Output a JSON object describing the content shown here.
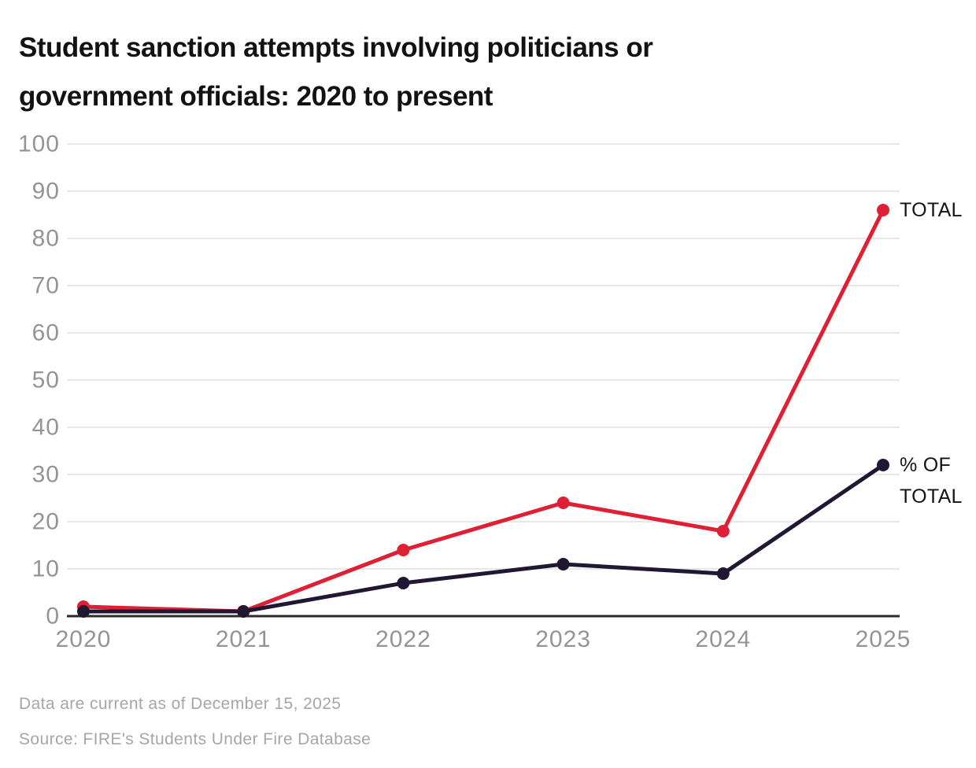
{
  "title": "Student sanction attempts involving politicians or government officials: 2020 to present",
  "chart_data": {
    "type": "line",
    "categories": [
      "2020",
      "2021",
      "2022",
      "2023",
      "2024",
      "2025"
    ],
    "series": [
      {
        "name": "TOTAL",
        "color": "#df1f33",
        "values": [
          2,
          1,
          14,
          24,
          18,
          86
        ]
      },
      {
        "name": "% OF TOTAL",
        "color": "#211733",
        "values": [
          1,
          1,
          7,
          11,
          9,
          32
        ]
      }
    ],
    "title": "Student sanction attempts involving politicians or government officials: 2020 to present",
    "xlabel": "",
    "ylabel": "",
    "ylim": [
      0,
      100
    ],
    "ytick_step": 10,
    "yticks": [
      0,
      10,
      20,
      30,
      40,
      50,
      60,
      70,
      80,
      90,
      100
    ],
    "grid": true,
    "legend_position": "right-of-last-point",
    "colors": {
      "gridline": "#e8e8e8",
      "axis_line": "#2b2b2b",
      "tick_label": "#949494",
      "title_text": "#121212",
      "label_text": "#131313",
      "footnote_text": "#a6a6a6"
    }
  },
  "footnotes": {
    "line1": "Data are current as of December 15, 2025",
    "line2": "Source: FIRE's Students Under Fire Database"
  }
}
